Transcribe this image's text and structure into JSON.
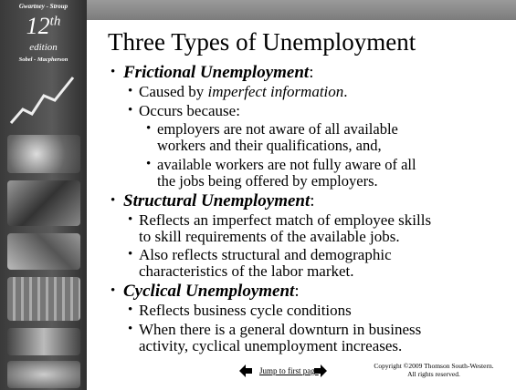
{
  "sidebar": {
    "authors_top": "Gwartney - Stroup",
    "edition_number": "12",
    "edition_suffix": "th",
    "edition_word": "edition",
    "authors_bottom": "Sobel - Macpherson"
  },
  "title": "Three Types of Unemployment",
  "sections": [
    {
      "heading": "Frictional Unemployment",
      "colon": ":",
      "items": [
        {
          "text": "Caused by ",
          "em": "imperfect information",
          "after": "."
        },
        {
          "lines": [
            "Occurs because:"
          ],
          "sub": [
            {
              "lines": [
                "employers are not aware of all available",
                "workers and their qualifications, and,"
              ]
            },
            {
              "lines": [
                "available workers are not fully aware of all",
                "the jobs being offered by employers."
              ]
            }
          ]
        }
      ]
    },
    {
      "heading": "Structural Unemployment",
      "colon": ":",
      "items": [
        {
          "lines": [
            "Reflects an imperfect match of employee skills",
            "to skill requirements of the available jobs."
          ]
        },
        {
          "lines": [
            "Also reflects structural and demographic",
            "characteristics of the labor market."
          ]
        }
      ]
    },
    {
      "heading": "Cyclical Unemployment",
      "colon": ":",
      "items": [
        {
          "lines": [
            "Reflects business cycle conditions"
          ]
        },
        {
          "lines": [
            "When there is a general downturn in business",
            "activity, cyclical unemployment increases."
          ]
        }
      ]
    }
  ],
  "footer": {
    "link": "Jump to first page",
    "copyright": [
      "Copyright ©2009  Thomson South-Western.",
      "All rights reserved."
    ]
  }
}
